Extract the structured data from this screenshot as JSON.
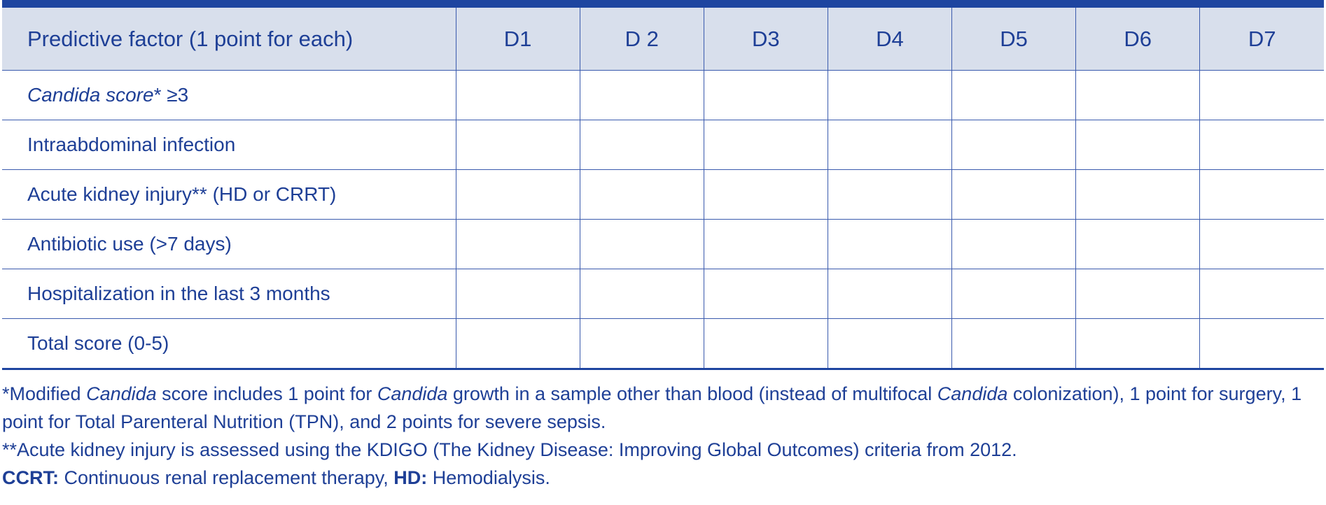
{
  "table": {
    "header": {
      "factor": "Predictive factor (1 point for each)",
      "days": [
        "D1",
        "D 2",
        "D3",
        "D4",
        "D5",
        "D6",
        "D7"
      ]
    },
    "rows": [
      {
        "italic": "Candida score",
        "rest": "* ≥3"
      },
      {
        "italic": "",
        "rest": "Intraabdominal infection"
      },
      {
        "italic": "",
        "rest": "Acute kidney injury** (HD or CRRT)"
      },
      {
        "italic": "",
        "rest": "Antibiotic use (>7 days)"
      },
      {
        "italic": "",
        "rest": "Hospitalization in the last 3 months"
      },
      {
        "italic": "",
        "rest": "Total score (0-5)"
      }
    ]
  },
  "notes": {
    "note1": {
      "p1": "*Modified ",
      "i1": "Candida",
      "p2": " score includes 1 point for ",
      "i2": "Candida",
      "p3": " growth in a sample other than blood (instead of multifocal ",
      "i3": "Candida",
      "p4": " colonization), 1 point for surgery, 1 point for Total Parenteral Nutrition (TPN), and 2 points for severe sepsis."
    },
    "note2": "**Acute kidney injury is assessed using the KDIGO (The Kidney Disease: Improving Global Outcomes) criteria from 2012.",
    "note3": {
      "b1": "CCRT:",
      "t1": " Continuous renal replacement therapy, ",
      "b2": "HD:",
      "t2": " Hemodialysis."
    }
  }
}
